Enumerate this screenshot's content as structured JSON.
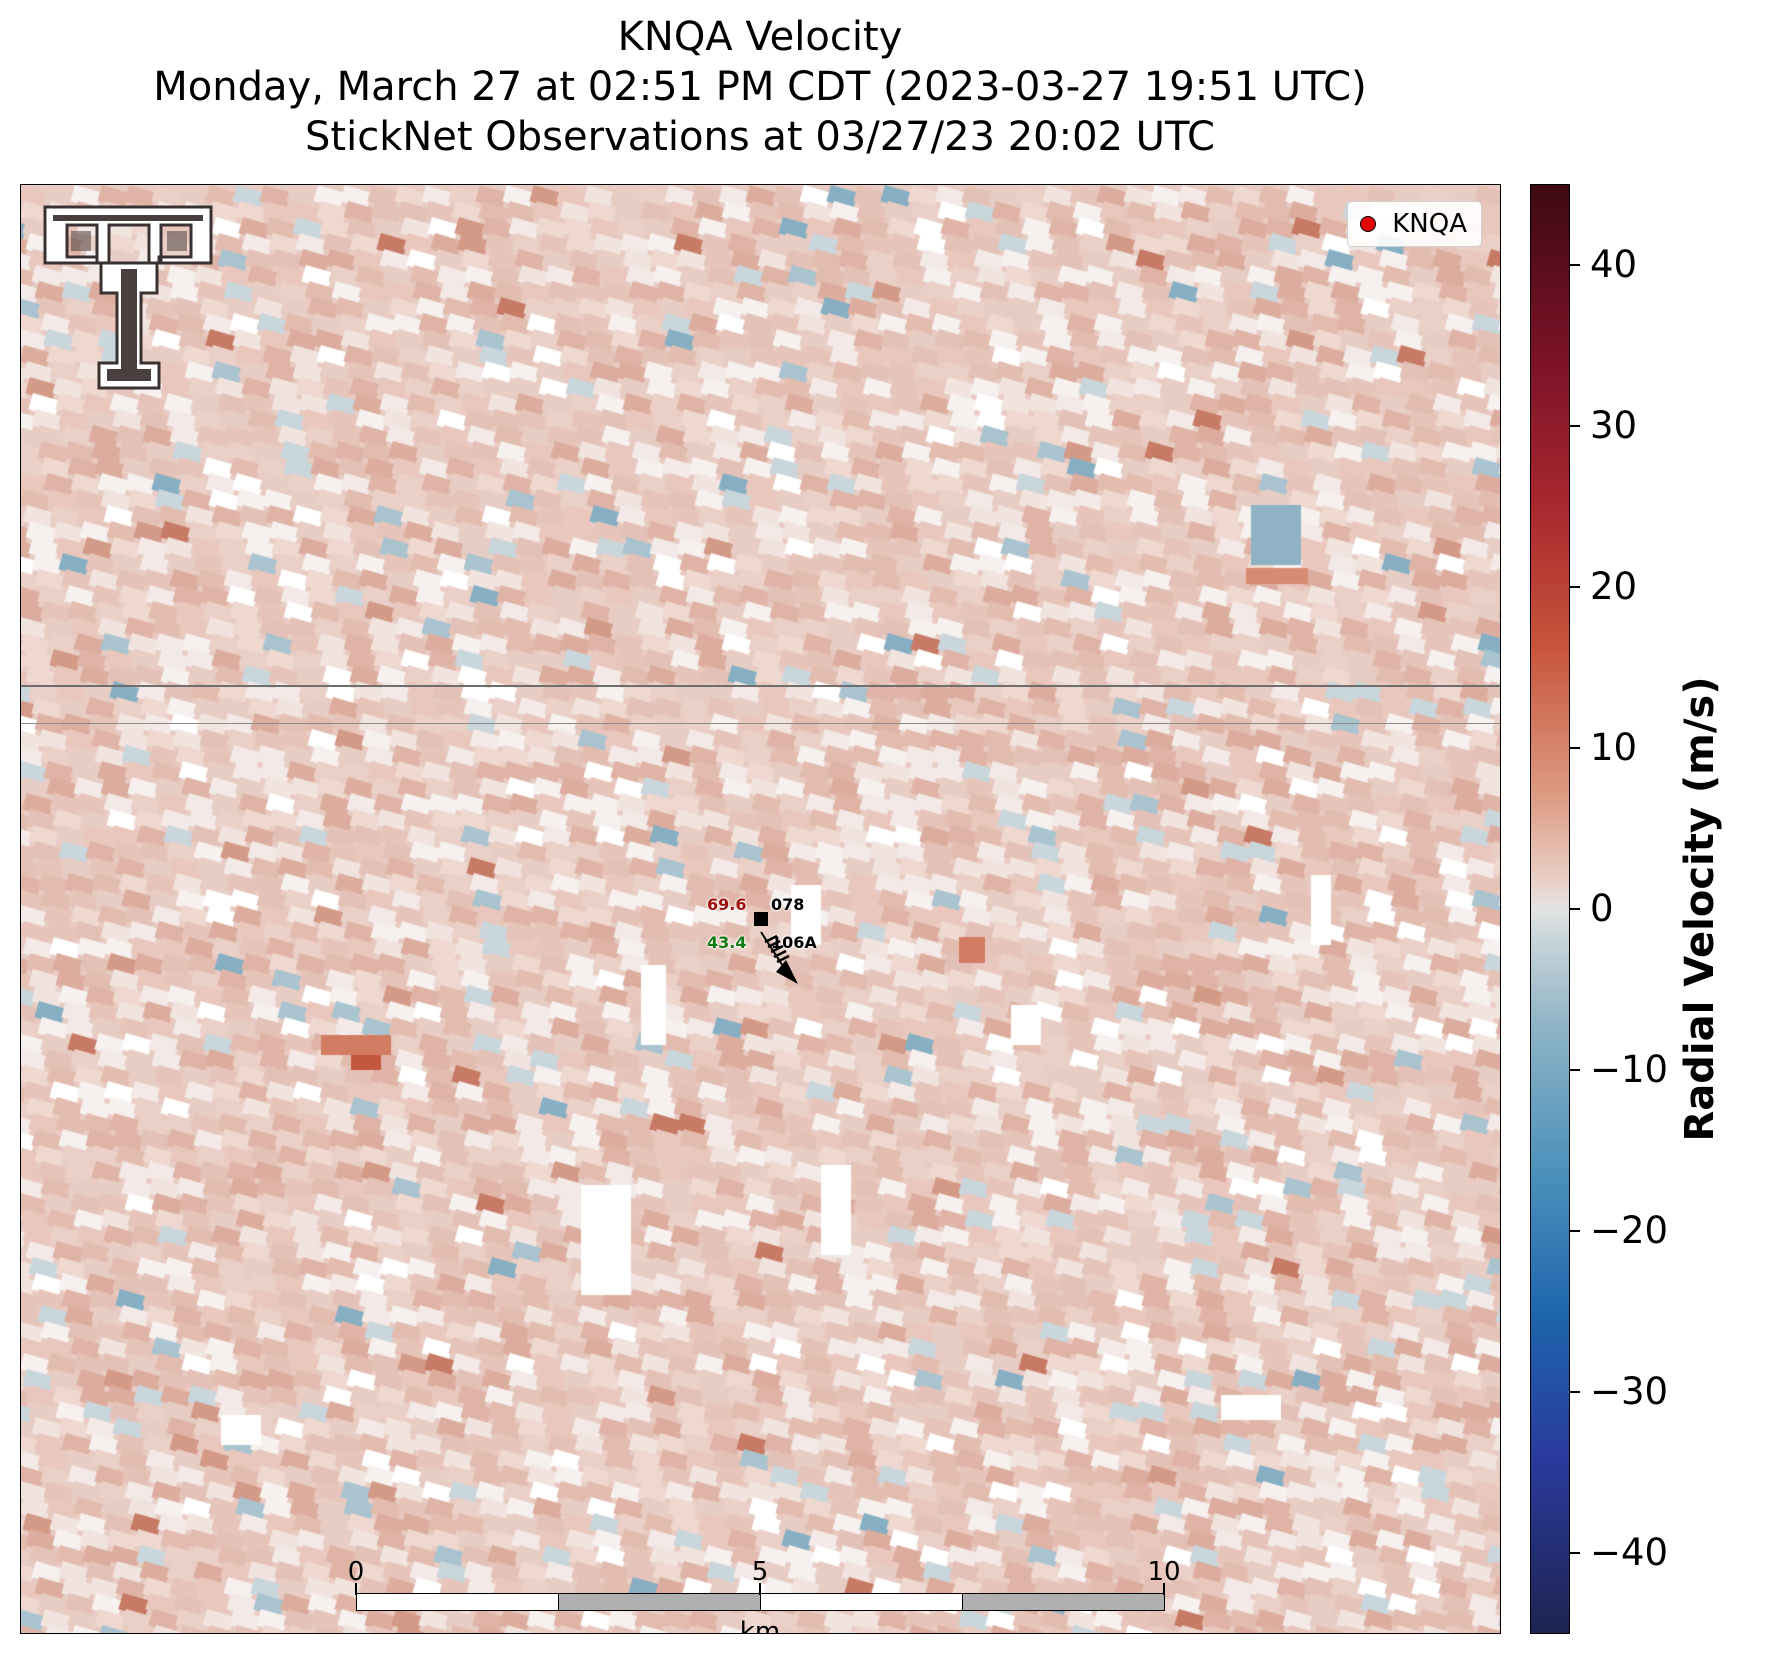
{
  "title": {
    "line1": "KNQA Velocity",
    "line2": "Monday, March 27 at 02:51 PM CDT (2023-03-27 19:51 UTC)",
    "line3": "StickNet Observations at 03/27/23 20:02 UTC"
  },
  "legend": {
    "label": "KNQA",
    "marker_color": "#e00000"
  },
  "stations": [
    {
      "temp": "69.6",
      "temp_color": "#a01010",
      "id": "078"
    },
    {
      "dewpoint": "43.4",
      "dewpoint_color": "#127a12",
      "id": "106A"
    }
  ],
  "colorbar": {
    "title": "Radial Velocity (m/s)",
    "min": -45,
    "max": 45,
    "ticks": [
      "40",
      "30",
      "20",
      "10",
      "0",
      "−10",
      "−20",
      "−30",
      "−40"
    ],
    "tick_values": [
      40,
      30,
      20,
      10,
      0,
      -10,
      -20,
      -30,
      -40
    ]
  },
  "scalebar": {
    "labels": [
      "0",
      "5",
      "10"
    ],
    "unit": "km"
  },
  "logo": {
    "name": "texas-tech-double-t-logo"
  }
}
